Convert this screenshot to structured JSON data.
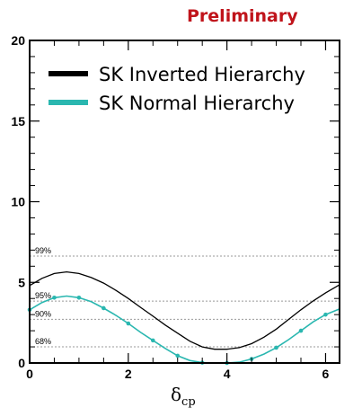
{
  "chart_data": {
    "type": "line",
    "title": "",
    "annotation": "Preliminary",
    "xlabel": "δ",
    "xlabel_subscript": "cp",
    "ylabel": "",
    "xlim": [
      0,
      6.283
    ],
    "ylim": [
      0,
      20
    ],
    "x_ticks": [
      0,
      2,
      4,
      6
    ],
    "y_ticks": [
      0,
      5,
      10,
      15,
      20
    ],
    "grid": false,
    "legend_position": "top-left",
    "confidence_levels": [
      {
        "label": "99%",
        "value": 6.63
      },
      {
        "label": "95%",
        "value": 3.84
      },
      {
        "label": "90%",
        "value": 2.71
      },
      {
        "label": "68%",
        "value": 1.0
      }
    ],
    "series": [
      {
        "name": "SK Inverted Hierarchy",
        "color": "#000000",
        "markers": false,
        "x": [
          0,
          0.25,
          0.5,
          0.75,
          1.0,
          1.25,
          1.5,
          1.75,
          2.0,
          2.25,
          2.5,
          2.75,
          3.0,
          3.25,
          3.5,
          3.75,
          4.0,
          4.25,
          4.5,
          4.75,
          5.0,
          5.25,
          5.5,
          5.75,
          6.0,
          6.283
        ],
        "y": [
          4.8,
          5.25,
          5.55,
          5.65,
          5.55,
          5.3,
          4.95,
          4.5,
          4.0,
          3.45,
          2.9,
          2.35,
          1.85,
          1.35,
          1.0,
          0.85,
          0.85,
          0.95,
          1.2,
          1.6,
          2.1,
          2.7,
          3.3,
          3.85,
          4.35,
          4.85
        ]
      },
      {
        "name": "SK Normal Hierarchy",
        "color": "#2ab7b0",
        "markers": true,
        "x": [
          0,
          0.25,
          0.5,
          0.75,
          1.0,
          1.25,
          1.5,
          1.75,
          2.0,
          2.25,
          2.5,
          2.75,
          3.0,
          3.25,
          3.5,
          3.75,
          4.0,
          4.25,
          4.5,
          4.75,
          5.0,
          5.25,
          5.5,
          5.75,
          6.0,
          6.283
        ],
        "y": [
          3.3,
          3.75,
          4.05,
          4.15,
          4.05,
          3.8,
          3.4,
          2.95,
          2.45,
          1.9,
          1.4,
          0.9,
          0.45,
          0.15,
          0.02,
          0.0,
          0.0,
          0.05,
          0.25,
          0.55,
          0.95,
          1.45,
          2.0,
          2.55,
          3.0,
          3.35
        ]
      }
    ]
  }
}
